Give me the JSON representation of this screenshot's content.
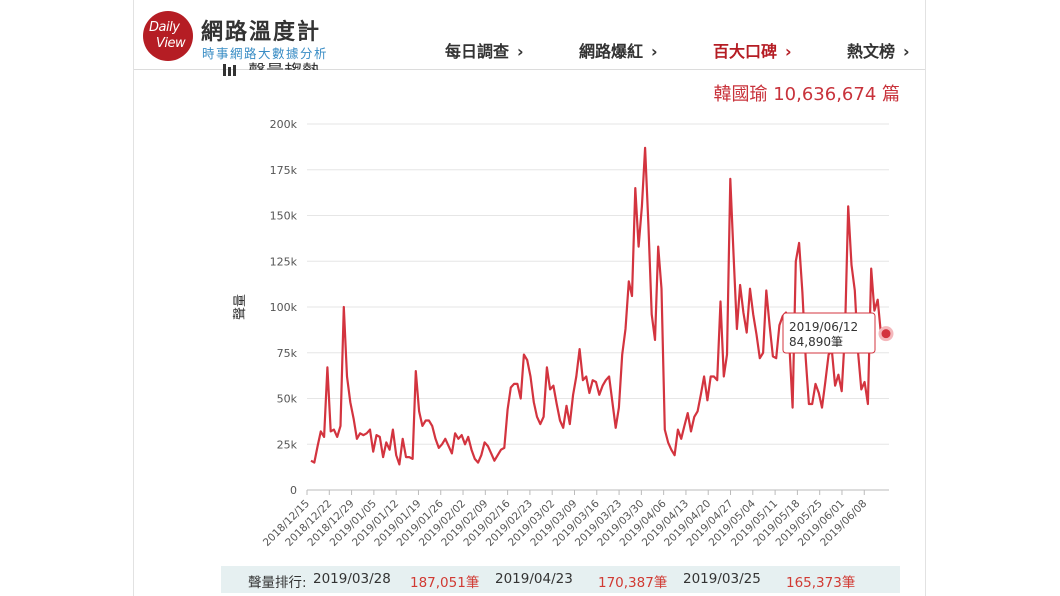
{
  "header": {
    "logo_line1": "Daily",
    "logo_line2": "View",
    "site_title": "網路溫度計",
    "site_subtitle": "時事網路大數據分析",
    "nav": [
      {
        "label": "每日調查",
        "chev": "›",
        "active": false
      },
      {
        "label": "網路爆紅",
        "chev": "›",
        "active": false
      },
      {
        "label": "百大口碑",
        "chev": "›",
        "active": true
      },
      {
        "label": "熱文榜",
        "chev": "›",
        "active": false
      }
    ],
    "accent_color": "#b51d24"
  },
  "section": {
    "title": "聲量趨勢",
    "total_label": "韓國瑜 10,636,674 篇"
  },
  "chart_data": {
    "type": "line",
    "ylabel": "聲量",
    "xlabel": "",
    "ylim": [
      0,
      200000
    ],
    "y_ticks": [
      0,
      25000,
      50000,
      75000,
      100000,
      125000,
      150000,
      175000,
      200000
    ],
    "y_tick_labels": [
      "0",
      "25k",
      "50k",
      "75k",
      "100k",
      "125k",
      "150k",
      "175k",
      "200k"
    ],
    "x_tick_labels": [
      "2018/12/15",
      "2018/12/22",
      "2018/12/29",
      "2019/01/05",
      "2019/01/12",
      "2019/01/19",
      "2019/01/26",
      "2019/02/02",
      "2019/02/09",
      "2019/02/16",
      "2019/02/23",
      "2019/03/02",
      "2019/03/09",
      "2019/03/16",
      "2019/03/23",
      "2019/03/30",
      "2019/04/06",
      "2019/04/13",
      "2019/04/20",
      "2019/04/27",
      "2019/05/04",
      "2019/05/11",
      "2019/05/18",
      "2019/05/25",
      "2019/06/01",
      "2019/06/08"
    ],
    "x_start": "2018/12/15",
    "x_end": "2019/06/12",
    "line_color": "#d3343f",
    "grid": true,
    "series": [
      {
        "values": [
          16000,
          15000,
          24000,
          32000,
          29000,
          67000,
          32000,
          33000,
          29000,
          35000,
          100000,
          62000,
          48000,
          39000,
          28000,
          31000,
          30000,
          31000,
          33000,
          21000,
          30000,
          29000,
          18000,
          26000,
          22000,
          33000,
          19000,
          14000,
          28000,
          18000,
          18000,
          17000,
          65000,
          43000,
          35000,
          38000,
          38000,
          35000,
          28000,
          23000,
          25000,
          28000,
          24000,
          20000,
          31000,
          28000,
          30000,
          25000,
          29000,
          22000,
          17000,
          15000,
          19000,
          26000,
          24000,
          20000,
          16000,
          19000,
          22000,
          23000,
          44000,
          56000,
          58000,
          58000,
          50000,
          74000,
          71000,
          62000,
          48000,
          40000,
          36000,
          40000,
          67000,
          55000,
          57000,
          47000,
          38000,
          34000,
          46000,
          36000,
          52000,
          62000,
          77000,
          60000,
          62000,
          53000,
          60000,
          59000,
          52000,
          57000,
          60000,
          62000,
          48000,
          34000,
          45000,
          74000,
          88000,
          114000,
          106000,
          165000,
          133000,
          155000,
          187000,
          145000,
          96000,
          82000,
          133000,
          110000,
          33000,
          26000,
          22000,
          19000,
          33000,
          28000,
          35000,
          42000,
          32000,
          40000,
          43000,
          52000,
          62000,
          49000,
          62000,
          62000,
          60000,
          103000,
          62000,
          74000,
          170000,
          128000,
          88000,
          112000,
          97000,
          86000,
          110000,
          96000,
          85000,
          72000,
          75000,
          109000,
          90000,
          73000,
          72000,
          90000,
          95000,
          97000,
          80000,
          45000,
          125000,
          135000,
          108000,
          72000,
          47000,
          47000,
          58000,
          53000,
          45000,
          59000,
          74000,
          76000,
          57000,
          63000,
          54000,
          86000,
          155000,
          123000,
          109000,
          75000,
          55000,
          59000,
          47000,
          121000,
          98000,
          104000,
          84890
        ]
      }
    ],
    "tooltip": {
      "date": "2019/06/12",
      "value": "84,890筆"
    }
  },
  "ranking": {
    "label": "聲量排行:",
    "items": [
      {
        "date": "2019/03/28",
        "value": "187,051筆"
      },
      {
        "date": "2019/04/23",
        "value": "170,387筆"
      },
      {
        "date": "2019/03/25",
        "value": "165,373筆"
      }
    ]
  }
}
